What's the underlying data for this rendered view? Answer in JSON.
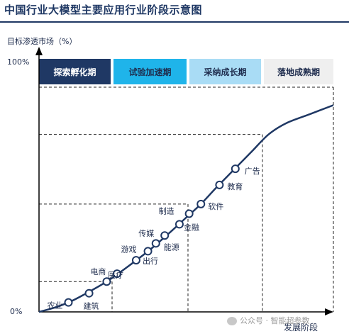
{
  "title": "中国行业大模型主要应用行业阶段示意图",
  "chart_data": {
    "type": "line",
    "ylabel": "目标渗透市场（%）",
    "xlabel": "发展阶段",
    "y_ticks": [
      "100%",
      "0%"
    ],
    "ylim": [
      0,
      100
    ],
    "stages": [
      {
        "name": "探索孵化期",
        "bg": "#1f3864",
        "fg": "#ffffff"
      },
      {
        "name": "试验加速期",
        "bg": "#1fb4ea",
        "fg": "#1f2d4e"
      },
      {
        "name": "采纳成长期",
        "bg": "#a9dcf5",
        "fg": "#1f2d4e"
      },
      {
        "name": "落地成熟期",
        "bg": "#efefef",
        "fg": "#1f2d4e"
      }
    ],
    "stage_boundary_levels": [
      13.5,
      48,
      79
    ],
    "curve": [
      {
        "x": 0,
        "y": 0
      },
      {
        "x": 5,
        "y": 1.8
      },
      {
        "x": 10,
        "y": 4.2
      },
      {
        "x": 15,
        "y": 7.5
      },
      {
        "x": 23,
        "y": 13.5
      },
      {
        "x": 30,
        "y": 20
      },
      {
        "x": 38,
        "y": 28
      },
      {
        "x": 45,
        "y": 36
      },
      {
        "x": 50,
        "y": 42
      },
      {
        "x": 55,
        "y": 48
      },
      {
        "x": 60,
        "y": 55
      },
      {
        "x": 66,
        "y": 63
      },
      {
        "x": 72,
        "y": 71
      },
      {
        "x": 78,
        "y": 79
      },
      {
        "x": 84,
        "y": 84
      },
      {
        "x": 92,
        "y": 88
      },
      {
        "x": 100,
        "y": 92
      }
    ],
    "points": [
      {
        "label": "农业",
        "x": 10,
        "y": 4.2
      },
      {
        "label": "建筑",
        "x": 17,
        "y": 8.3
      },
      {
        "label": "电商",
        "x": 23,
        "y": 13.5
      },
      {
        "label": "医疗",
        "x": 26.5,
        "y": 17
      },
      {
        "label": "出行",
        "x": 33,
        "y": 23
      },
      {
        "label": "游戏",
        "x": 37,
        "y": 27
      },
      {
        "label": "能源",
        "x": 39.7,
        "y": 30.5
      },
      {
        "label": "传媒",
        "x": 42.7,
        "y": 34
      },
      {
        "label": "金融",
        "x": 47.7,
        "y": 39
      },
      {
        "label": "制造",
        "x": 51,
        "y": 43.7
      },
      {
        "label": "软件",
        "x": 55,
        "y": 48
      },
      {
        "label": "教育",
        "x": 61.3,
        "y": 56.5
      },
      {
        "label": "广告",
        "x": 66.7,
        "y": 63.7
      }
    ],
    "line_color": "#1f3864",
    "guide_style": "dashed"
  },
  "watermark": "公众号 · 智能超参数"
}
